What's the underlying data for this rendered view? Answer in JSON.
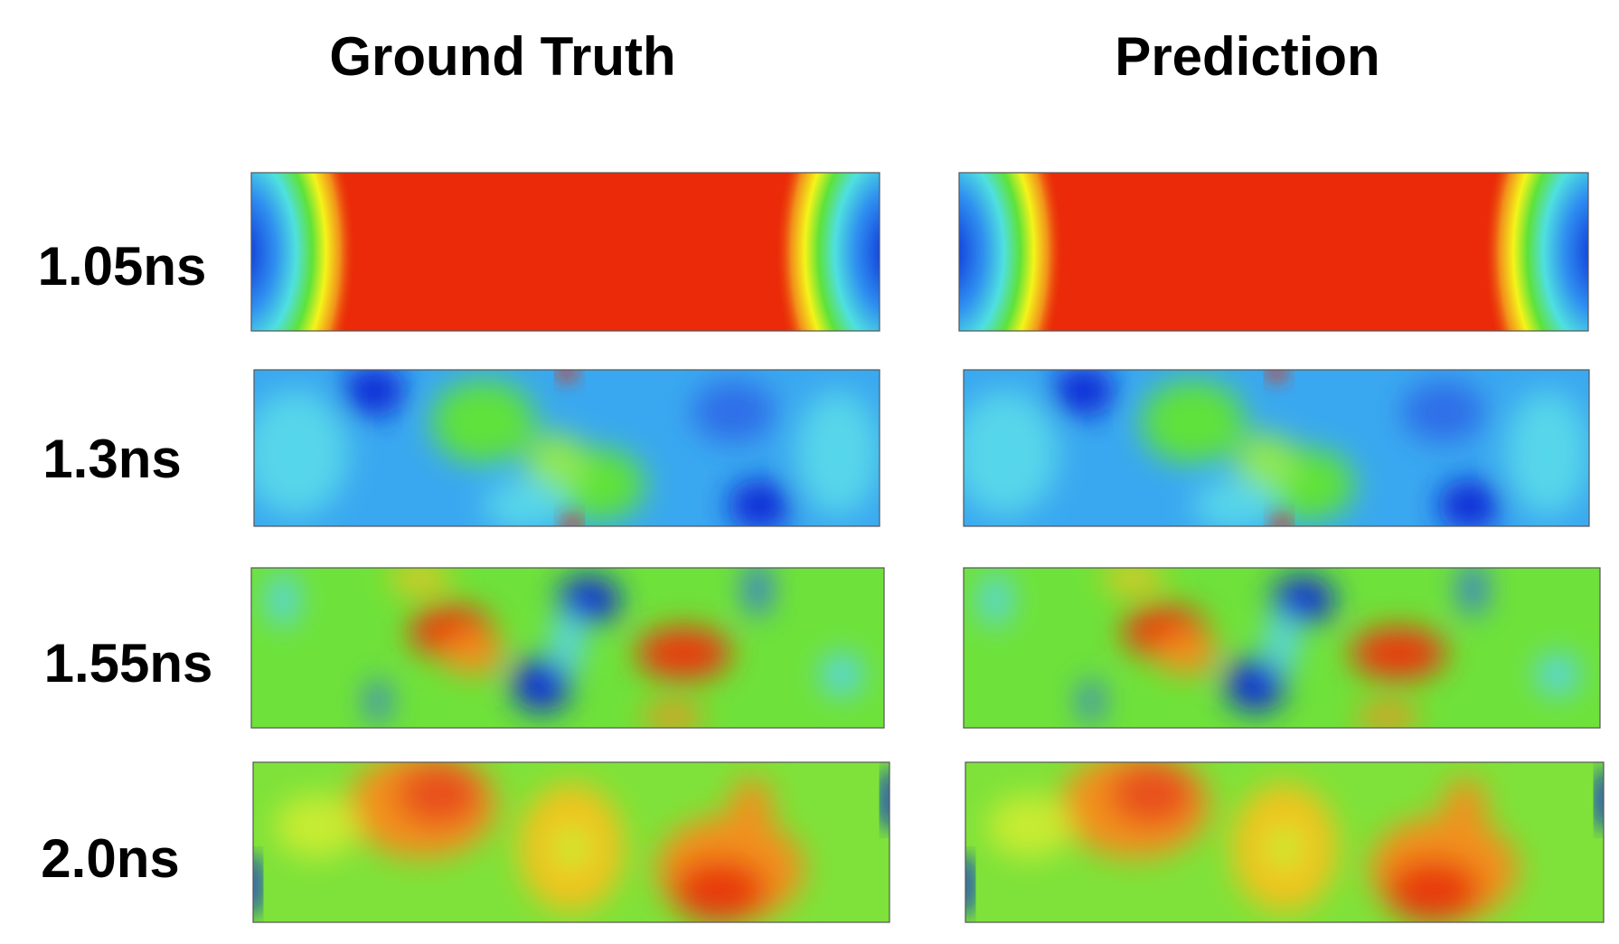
{
  "columns": [
    "Ground Truth",
    "Prediction"
  ],
  "rows": [
    "1.05ns",
    "1.3ns",
    "1.55ns",
    "2.0ns"
  ]
}
